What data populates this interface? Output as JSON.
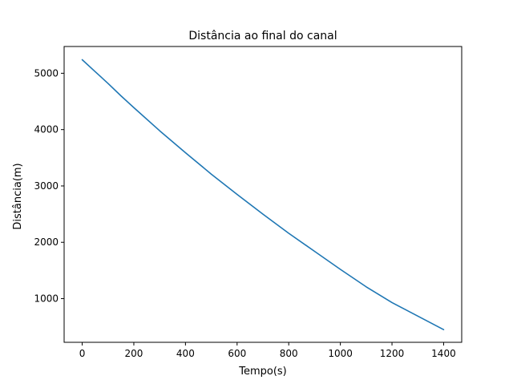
{
  "chart_data": {
    "type": "line",
    "title": "Distância ao final do canal",
    "xlabel": "Tempo(s)",
    "ylabel": "Distância(m)",
    "xlim": [
      -70,
      1470
    ],
    "ylim": [
      225,
      5475
    ],
    "xticks": [
      0,
      200,
      400,
      600,
      800,
      1000,
      1200,
      1400
    ],
    "yticks": [
      1000,
      2000,
      3000,
      4000,
      5000
    ],
    "grid": false,
    "line_color": "#1f77b4",
    "series": [
      {
        "x": [
          0,
          50,
          100,
          150,
          200,
          300,
          400,
          500,
          600,
          700,
          800,
          900,
          1000,
          1100,
          1200,
          1300,
          1400
        ],
        "y": [
          5240,
          5030,
          4820,
          4600,
          4390,
          3980,
          3590,
          3210,
          2850,
          2500,
          2160,
          1840,
          1520,
          1210,
          930,
          690,
          450
        ]
      }
    ]
  }
}
